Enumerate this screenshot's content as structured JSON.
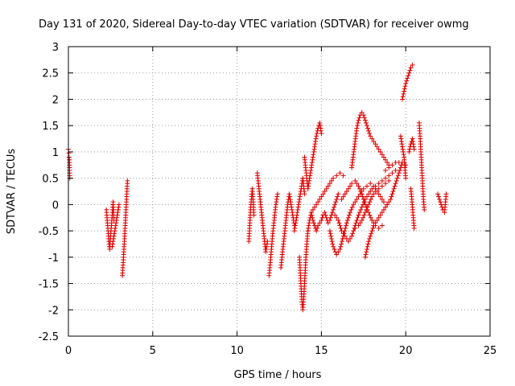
{
  "chart_data": {
    "type": "scatter",
    "title": "Day 131 of 2020, Sidereal Day-to-day VTEC variation (SDTVAR) for receiver owmg",
    "xlabel": "GPS time / hours",
    "ylabel": "SDTVAR / TECUs",
    "xlim": [
      0,
      25
    ],
    "ylim": [
      -2.5,
      3
    ],
    "xticks": [
      0,
      5,
      10,
      15,
      20,
      25
    ],
    "xtick_labels": [
      "0",
      "5",
      "10",
      "15",
      "20",
      "25"
    ],
    "yticks": [
      -2.5,
      -2,
      -1.5,
      -1,
      -0.5,
      0,
      0.5,
      1,
      1.5,
      2,
      2.5,
      3
    ],
    "ytick_labels": [
      "-2.5",
      "-2",
      "-1.5",
      "-1",
      "-0.5",
      "0",
      "0.5",
      "1",
      "1.5",
      "2",
      "2.5",
      "3"
    ],
    "grid": true,
    "grid_style": "dotted",
    "marker": "+",
    "color": "#e00000",
    "series": [
      {
        "name": "SDTVAR",
        "segments": [
          {
            "x": [
              0.0,
              0.02,
              0.04,
              0.06,
              0.08
            ],
            "y": [
              1.05,
              0.98,
              0.9,
              0.85,
              0.5
            ]
          },
          {
            "x": [
              2.25,
              2.3,
              2.35,
              2.4,
              2.45,
              2.5,
              2.55,
              2.6,
              2.65,
              2.7
            ],
            "y": [
              -0.1,
              -0.3,
              -0.5,
              -0.7,
              -0.85,
              -0.6,
              -0.4,
              -0.2,
              0.05,
              -0.3
            ]
          },
          {
            "x": [
              2.6,
              2.7,
              2.8,
              2.9,
              3.0
            ],
            "y": [
              -0.8,
              -0.6,
              -0.4,
              -0.2,
              0.0
            ]
          },
          {
            "x": [
              3.2,
              3.25,
              3.3,
              3.35,
              3.4,
              3.45,
              3.5
            ],
            "y": [
              -1.35,
              -1.1,
              -0.8,
              -0.5,
              -0.2,
              0.1,
              0.45
            ]
          },
          {
            "x": [
              10.7,
              10.75,
              10.8,
              10.85,
              10.9,
              10.95,
              11.0
            ],
            "y": [
              -0.7,
              -0.4,
              -0.1,
              0.1,
              0.3,
              0.1,
              -0.2
            ]
          },
          {
            "x": [
              11.2,
              11.3,
              11.4,
              11.5,
              11.6,
              11.7,
              11.8
            ],
            "y": [
              0.6,
              0.3,
              0.0,
              -0.3,
              -0.6,
              -0.9,
              -0.7
            ]
          },
          {
            "x": [
              11.9,
              12.0,
              12.1,
              12.2,
              12.3,
              12.4
            ],
            "y": [
              -1.35,
              -1.0,
              -0.6,
              -0.3,
              0.0,
              0.2
            ]
          },
          {
            "x": [
              12.6,
              12.7,
              12.8,
              12.9,
              13.0,
              13.1,
              13.2,
              13.3,
              13.4
            ],
            "y": [
              -1.2,
              -0.9,
              -0.6,
              -0.3,
              0.0,
              0.2,
              0.0,
              -0.2,
              -0.4
            ]
          },
          {
            "x": [
              13.4,
              13.5,
              13.6,
              13.7,
              13.8,
              13.9,
              14.0
            ],
            "y": [
              -0.5,
              -0.3,
              -0.1,
              0.1,
              0.3,
              0.5,
              0.2
            ]
          },
          {
            "x": [
              13.7,
              13.75,
              13.8,
              13.85,
              13.9,
              13.95,
              14.0,
              14.05,
              14.1,
              14.15,
              14.2
            ],
            "y": [
              -1.0,
              -1.3,
              -1.6,
              -1.85,
              -2.0,
              -1.8,
              -1.5,
              -1.2,
              -0.9,
              -0.7,
              -0.5
            ]
          },
          {
            "x": [
              14.2,
              14.3,
              14.4,
              14.5,
              14.6,
              14.7,
              14.8,
              14.9,
              15.0,
              15.1,
              15.2,
              15.3,
              15.4,
              15.5,
              15.6,
              15.7,
              15.8,
              15.9,
              16.0
            ],
            "y": [
              -0.5,
              -0.3,
              -0.15,
              -0.3,
              -0.4,
              -0.5,
              -0.4,
              -0.35,
              -0.3,
              -0.2,
              -0.15,
              -0.25,
              -0.35,
              -0.3,
              -0.2,
              -0.1,
              0.0,
              0.1,
              0.2
            ]
          },
          {
            "x": [
              14.0,
              14.1,
              14.2,
              14.3,
              14.4,
              14.5,
              14.6,
              14.7,
              14.8,
              14.9,
              15.0
            ],
            "y": [
              0.9,
              0.6,
              0.3,
              0.5,
              0.7,
              0.9,
              1.1,
              1.3,
              1.45,
              1.55,
              1.35
            ]
          },
          {
            "x": [
              14.5,
              14.7,
              14.9,
              15.1,
              15.3,
              15.5,
              15.7,
              15.9,
              16.1,
              16.3
            ],
            "y": [
              -0.1,
              0.0,
              0.1,
              0.2,
              0.3,
              0.4,
              0.5,
              0.55,
              0.6,
              0.55
            ]
          },
          {
            "x": [
              15.5,
              15.7,
              15.9,
              16.1,
              16.3,
              16.5,
              16.7,
              16.9,
              17.1,
              17.3,
              17.5,
              17.7,
              17.9,
              18.1,
              18.3,
              18.5,
              18.7,
              18.9
            ],
            "y": [
              -0.5,
              -0.8,
              -0.95,
              -0.85,
              -0.6,
              -0.35,
              -0.15,
              0.0,
              0.1,
              0.2,
              0.3,
              0.35,
              0.4,
              0.35,
              0.25,
              0.15,
              0.05,
              0.0
            ]
          },
          {
            "x": [
              15.8,
              16.0,
              16.2,
              16.4,
              16.6,
              16.8,
              17.0,
              17.2,
              17.4,
              17.6,
              17.8,
              18.0,
              18.2,
              18.4,
              18.6,
              18.8,
              19.0,
              19.2,
              19.4
            ],
            "y": [
              -0.2,
              -0.3,
              -0.5,
              -0.6,
              -0.7,
              -0.6,
              -0.4,
              -0.2,
              -0.05,
              0.1,
              0.2,
              0.3,
              0.35,
              0.4,
              0.45,
              0.5,
              0.55,
              0.6,
              0.65
            ]
          },
          {
            "x": [
              16.2,
              16.4,
              16.6,
              16.8,
              17.0,
              17.2,
              17.4,
              17.6,
              17.8,
              18.0,
              18.2,
              18.4,
              18.6
            ],
            "y": [
              0.1,
              0.2,
              0.3,
              0.4,
              0.45,
              0.35,
              0.2,
              0.0,
              -0.15,
              -0.3,
              -0.4,
              -0.45,
              -0.4
            ]
          },
          {
            "x": [
              16.8,
              16.9,
              17.0,
              17.1,
              17.2,
              17.3,
              17.4,
              17.5,
              17.6,
              17.7,
              17.8,
              17.9,
              18.0,
              18.1,
              18.2,
              18.3,
              18.4,
              18.5,
              18.6,
              18.7,
              18.8,
              18.9,
              19.0
            ],
            "y": [
              0.7,
              0.95,
              1.2,
              1.45,
              1.6,
              1.7,
              1.75,
              1.7,
              1.6,
              1.5,
              1.4,
              1.3,
              1.25,
              1.2,
              1.15,
              1.1,
              1.05,
              1.0,
              0.95,
              0.9,
              0.85,
              0.8,
              0.75
            ]
          },
          {
            "x": [
              17.0,
              17.2,
              17.4,
              17.6,
              17.8,
              18.0,
              18.2,
              18.4,
              18.6,
              18.8,
              19.0
            ],
            "y": [
              -0.45,
              -0.4,
              -0.3,
              -0.15,
              0.0,
              0.15,
              0.25,
              0.3,
              0.35,
              0.4,
              0.45
            ]
          },
          {
            "x": [
              17.6,
              17.7,
              17.8,
              17.9,
              18.0,
              18.1,
              18.2,
              18.3,
              18.4,
              18.5,
              18.6,
              18.7,
              18.8,
              18.9,
              19.0,
              19.1,
              19.2,
              19.3,
              19.4,
              19.5,
              19.6,
              19.7,
              19.8
            ],
            "y": [
              -1.0,
              -0.85,
              -0.7,
              -0.6,
              -0.5,
              -0.4,
              -0.35,
              -0.3,
              -0.25,
              -0.2,
              -0.15,
              -0.1,
              -0.05,
              0.0,
              0.05,
              0.1,
              0.2,
              0.3,
              0.4,
              0.5,
              0.6,
              0.7,
              0.8
            ]
          },
          {
            "x": [
              18.8,
              19.0,
              19.2,
              19.4,
              19.6,
              19.8,
              20.0
            ],
            "y": [
              0.65,
              0.7,
              0.75,
              0.8,
              0.8,
              0.8,
              0.75
            ]
          },
          {
            "x": [
              19.7,
              19.75,
              19.8,
              19.85,
              19.9,
              19.95,
              20.0
            ],
            "y": [
              1.3,
              1.2,
              1.1,
              1.0,
              0.9,
              0.7,
              0.5
            ]
          },
          {
            "x": [
              19.8,
              19.9,
              20.0,
              20.1,
              20.2,
              20.3,
              20.4
            ],
            "y": [
              2.0,
              2.15,
              2.3,
              2.4,
              2.5,
              2.6,
              2.65
            ]
          },
          {
            "x": [
              20.2,
              20.3,
              20.4,
              20.5
            ],
            "y": [
              1.0,
              1.15,
              1.25,
              1.05
            ]
          },
          {
            "x": [
              20.3,
              20.35,
              20.4,
              20.45,
              20.5
            ],
            "y": [
              0.3,
              0.15,
              -0.05,
              -0.25,
              -0.45
            ]
          },
          {
            "x": [
              20.8,
              20.85,
              20.9,
              20.95,
              21.0,
              21.05,
              21.1
            ],
            "y": [
              1.55,
              1.3,
              1.0,
              0.7,
              0.4,
              0.1,
              -0.1
            ]
          },
          {
            "x": [
              21.9,
              22.0,
              22.1,
              22.2,
              22.3,
              22.4
            ],
            "y": [
              0.2,
              0.1,
              0.0,
              -0.1,
              -0.15,
              0.2
            ]
          }
        ]
      }
    ]
  }
}
